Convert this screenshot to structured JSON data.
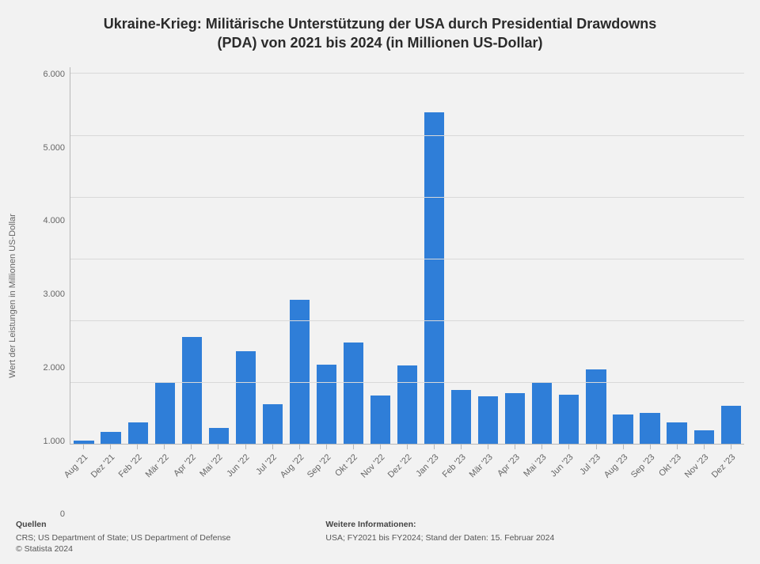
{
  "title_line1": "Ukraine-Krieg: Militärische Unterstützung der USA durch Presidential Drawdowns",
  "title_line2": "(PDA) von 2021 bis 2024 (in Millionen US-Dollar)",
  "chart": {
    "type": "bar",
    "ylabel": "Wert der Leistungen in Millionen US-Dollar",
    "ylim": [
      0,
      6100
    ],
    "ytick_step": 1000,
    "ytick_labels": [
      "0",
      "1.000",
      "2.000",
      "3.000",
      "4.000",
      "5.000",
      "6.000"
    ],
    "categories": [
      "Aug '21",
      "Dez '21",
      "Feb '22",
      "Mär '22",
      "Apr '22",
      "Mai '22",
      "Jun '22",
      "Jul '22",
      "Aug '22",
      "Sep '22",
      "Okt '22",
      "Nov '22",
      "Dez '22",
      "Jan '23",
      "Feb '23",
      "Mär '23",
      "Apr '23",
      "Mai '23",
      "Jun '23",
      "Jul '23",
      "Aug '23",
      "Sep '23",
      "Okt '23",
      "Nov '23",
      "Dez '23"
    ],
    "values": [
      60,
      200,
      350,
      1000,
      1730,
      260,
      1500,
      640,
      2330,
      1280,
      1640,
      790,
      1270,
      5360,
      870,
      770,
      830,
      985,
      800,
      1210,
      475,
      500,
      350,
      225,
      625
    ],
    "bar_color": "#2f7ed8",
    "background_color": "#f2f2f2",
    "grid_color": "#d9d9d9",
    "axis_color": "#b8b8b8",
    "title_fontsize": 18,
    "label_fontsize": 11,
    "bar_width": 0.74
  },
  "footer": {
    "sources_header": "Quellen",
    "sources_text": "CRS; US Department of State; US Department of Defense",
    "copyright": "© Statista 2024",
    "more_header": "Weitere Informationen:",
    "more_text": "USA; FY2021 bis FY2024; Stand der Daten: 15. Februar 2024"
  }
}
